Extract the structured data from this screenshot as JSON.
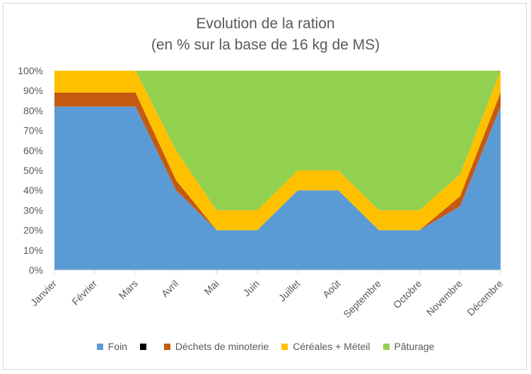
{
  "chart_data": {
    "type": "area",
    "title_line_1": "Evolution de la ration",
    "title_line_2": "(en % sur la base de 16 kg de MS)",
    "categories": [
      "Janvier",
      "Février",
      "Mars",
      "Avril",
      "Mai",
      "Juin",
      "Juillet",
      "Août",
      "Septembre",
      "Octobre",
      "Novembre",
      "Décembre"
    ],
    "y_ticks": [
      "0%",
      "10%",
      "20%",
      "30%",
      "40%",
      "50%",
      "60%",
      "70%",
      "80%",
      "90%",
      "100%"
    ],
    "ylim": [
      0,
      100
    ],
    "stacked": true,
    "series": [
      {
        "name": "Foin",
        "color": "#5b9bd5",
        "values": [
          82,
          82,
          82,
          40,
          20,
          20,
          40,
          40,
          20,
          20,
          32,
          82
        ]
      },
      {
        "name": "",
        "color": "#000000",
        "values": [
          0,
          0,
          0,
          0,
          0,
          0,
          0,
          0,
          0,
          0,
          0,
          0
        ]
      },
      {
        "name": "Déchets de minoterie",
        "color": "#c55a11",
        "values": [
          7,
          7,
          7,
          5,
          0,
          0,
          0,
          0,
          0,
          0,
          5,
          7
        ]
      },
      {
        "name": "Céréales + Méteil",
        "color": "#ffc000",
        "values": [
          11,
          11,
          11,
          15,
          10,
          10,
          10,
          10,
          10,
          10,
          11,
          11
        ]
      },
      {
        "name": "Pâturage",
        "color": "#92d050",
        "values": [
          0,
          0,
          0,
          40,
          70,
          70,
          50,
          50,
          70,
          70,
          52,
          0
        ]
      }
    ],
    "legend_position": "bottom"
  }
}
